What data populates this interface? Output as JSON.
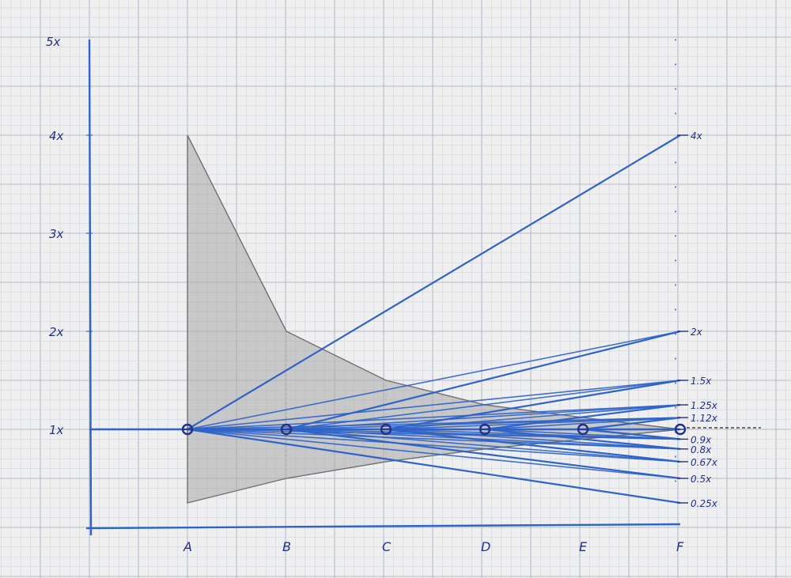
{
  "chart_data": {
    "type": "line",
    "title": "",
    "xlabel": "",
    "ylabel": "",
    "categories": [
      "A",
      "B",
      "C",
      "D",
      "E",
      "F"
    ],
    "y_tick_labels": [
      {
        "value": 1,
        "label": "1x"
      },
      {
        "value": 2,
        "label": "2x"
      },
      {
        "value": 3,
        "label": "3x"
      },
      {
        "value": 4,
        "label": "4x"
      },
      {
        "value": 5,
        "label": "5x"
      }
    ],
    "ylim": [
      0,
      5
    ],
    "grid": true,
    "baseline": {
      "y": 1,
      "x_from": "left-axis",
      "x_to": "F"
    },
    "uncertainty_band": {
      "upper": [
        4,
        2,
        1.5,
        1.25,
        1.12,
        1.0
      ],
      "lower": [
        0.25,
        0.5,
        0.67,
        0.8,
        0.9,
        1.0
      ],
      "inner_upper": [
        4,
        2,
        1.5,
        1.25,
        1.12,
        1.0
      ],
      "inner_lower": [
        0.25,
        0.5,
        0.67,
        0.8,
        0.9,
        1.0
      ]
    },
    "right_labels": [
      {
        "value": 4,
        "label": "4x"
      },
      {
        "value": 2,
        "label": "2x"
      },
      {
        "value": 1.5,
        "label": "1.5x"
      },
      {
        "value": 1.25,
        "label": "1.25x"
      },
      {
        "value": 1.12,
        "label": "1.12x"
      },
      {
        "value": 0.9,
        "label": "0.9x"
      },
      {
        "value": 0.8,
        "label": "0.8x"
      },
      {
        "value": 0.67,
        "label": "0.67x"
      },
      {
        "value": 0.5,
        "label": "0.5x"
      },
      {
        "value": 0.25,
        "label": "0.25x"
      }
    ],
    "fans": [
      {
        "from": "A",
        "to": "F",
        "targets": [
          4,
          0.25
        ]
      },
      {
        "from": "B",
        "to": "F",
        "targets": [
          2,
          0.5
        ]
      },
      {
        "from": "C",
        "to": "F",
        "targets": [
          1.5,
          0.67
        ]
      },
      {
        "from": "D",
        "to": "F",
        "targets": [
          1.25,
          0.8
        ]
      },
      {
        "from": "E",
        "to": "F",
        "targets": [
          1.12,
          0.9
        ]
      }
    ],
    "markers": [
      "A",
      "B",
      "C",
      "D",
      "E",
      "F"
    ],
    "colors": {
      "ink": "#2e63c7",
      "ink_dark": "#23308a",
      "band_fill": "#a7a7a7",
      "band_edge": "#6f6f6f",
      "grid_minor": "#cfd6df",
      "grid_major": "#b3bccb",
      "paper": "#efeff0"
    }
  }
}
